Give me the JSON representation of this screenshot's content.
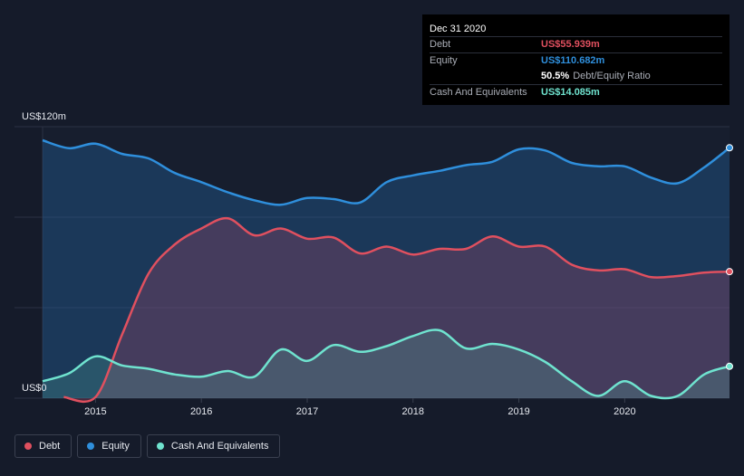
{
  "chart_data": {
    "type": "area",
    "title": "",
    "y_top_label": "US$120m",
    "y_bottom_label": "US$0",
    "ylim": [
      0,
      120
    ],
    "xlim": [
      2014.5,
      2021.0
    ],
    "x_ticks": [
      "2015",
      "2016",
      "2017",
      "2018",
      "2019",
      "2020"
    ],
    "x_tick_values": [
      2015,
      2016,
      2017,
      2018,
      2019,
      2020
    ],
    "grid": true,
    "series": [
      {
        "name": "Equity",
        "color": "#2f8fdc",
        "points": [
          [
            2014.5,
            114
          ],
          [
            2014.75,
            110.5
          ],
          [
            2015.0,
            112.5
          ],
          [
            2015.25,
            108
          ],
          [
            2015.5,
            106
          ],
          [
            2015.75,
            99.5
          ],
          [
            2016.0,
            95.5
          ],
          [
            2016.25,
            91
          ],
          [
            2016.5,
            87.5
          ],
          [
            2016.75,
            85.5
          ],
          [
            2017.0,
            88.5
          ],
          [
            2017.25,
            88
          ],
          [
            2017.5,
            86.5
          ],
          [
            2017.75,
            95.5
          ],
          [
            2018.0,
            98.5
          ],
          [
            2018.25,
            100.5
          ],
          [
            2018.5,
            103
          ],
          [
            2018.75,
            104.5
          ],
          [
            2019.0,
            110
          ],
          [
            2019.25,
            109.5
          ],
          [
            2019.5,
            104
          ],
          [
            2019.75,
            102.5
          ],
          [
            2020.0,
            102.5
          ],
          [
            2020.25,
            97.5
          ],
          [
            2020.5,
            95
          ],
          [
            2020.75,
            102
          ],
          [
            2020.99,
            110.682
          ]
        ]
      },
      {
        "name": "Debt",
        "color": "#e0505f",
        "points": [
          [
            2014.7,
            0.5
          ],
          [
            2015.0,
            0.5
          ],
          [
            2015.25,
            28
          ],
          [
            2015.5,
            55
          ],
          [
            2015.75,
            68
          ],
          [
            2016.0,
            75
          ],
          [
            2016.25,
            79.5
          ],
          [
            2016.5,
            72
          ],
          [
            2016.75,
            75
          ],
          [
            2017.0,
            70.5
          ],
          [
            2017.25,
            71
          ],
          [
            2017.5,
            64
          ],
          [
            2017.75,
            67
          ],
          [
            2018.0,
            63.5
          ],
          [
            2018.25,
            66
          ],
          [
            2018.5,
            66
          ],
          [
            2018.75,
            71.5
          ],
          [
            2019.0,
            67
          ],
          [
            2019.25,
            67
          ],
          [
            2019.5,
            59
          ],
          [
            2019.75,
            56.5
          ],
          [
            2020.0,
            57
          ],
          [
            2020.25,
            53.5
          ],
          [
            2020.5,
            54
          ],
          [
            2020.75,
            55.5
          ],
          [
            2020.99,
            55.939
          ]
        ]
      },
      {
        "name": "Cash And Equivalents",
        "color": "#6fe3cf",
        "points": [
          [
            2014.5,
            7.5
          ],
          [
            2014.75,
            11
          ],
          [
            2015.0,
            18.5
          ],
          [
            2015.25,
            14.5
          ],
          [
            2015.5,
            13
          ],
          [
            2015.75,
            10.5
          ],
          [
            2016.0,
            9.5
          ],
          [
            2016.25,
            12
          ],
          [
            2016.5,
            9.5
          ],
          [
            2016.75,
            21.5
          ],
          [
            2017.0,
            16.5
          ],
          [
            2017.25,
            23.5
          ],
          [
            2017.5,
            20.5
          ],
          [
            2017.75,
            23
          ],
          [
            2018.0,
            27.5
          ],
          [
            2018.25,
            30
          ],
          [
            2018.5,
            22
          ],
          [
            2018.75,
            24
          ],
          [
            2019.0,
            21.5
          ],
          [
            2019.25,
            16
          ],
          [
            2019.5,
            7.5
          ],
          [
            2019.75,
            1
          ],
          [
            2020.0,
            7.5
          ],
          [
            2020.25,
            1
          ],
          [
            2020.5,
            1
          ],
          [
            2020.75,
            10.5
          ],
          [
            2020.99,
            14.085
          ]
        ]
      }
    ]
  },
  "tooltip": {
    "date": "Dec 31 2020",
    "debt_label": "Debt",
    "debt_value": "US$55.939m",
    "equity_label": "Equity",
    "equity_value": "US$110.682m",
    "ratio_value": "50.5%",
    "ratio_label": "Debt/Equity Ratio",
    "cash_label": "Cash And Equivalents",
    "cash_value": "US$14.085m",
    "debt_color": "#e0505f",
    "equity_color": "#2f8fdc",
    "cash_color": "#6fe3cf"
  },
  "legend": [
    {
      "label": "Debt",
      "color": "#e0505f"
    },
    {
      "label": "Equity",
      "color": "#2f8fdc"
    },
    {
      "label": "Cash And Equivalents",
      "color": "#6fe3cf"
    }
  ]
}
